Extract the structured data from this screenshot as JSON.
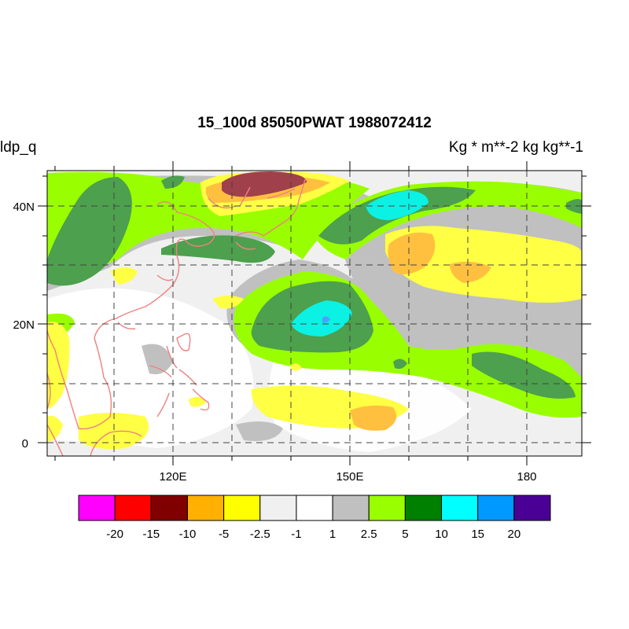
{
  "title": "15_100d 85050PWAT  1988072412",
  "left_string": "ldp_q",
  "right_string": "Kg  * m**-2 kg kg**-1",
  "map": {
    "lat_ticks": [
      "40N",
      "20N",
      "0"
    ],
    "lon_ticks": [
      "120E",
      "150E",
      "180"
    ],
    "coastline_color": "#f08080"
  },
  "colorbar": {
    "labels": [
      "-20",
      "-15",
      "-10",
      "-5",
      "-2.5",
      "-1",
      "1",
      "2.5",
      "5",
      "10",
      "15",
      "20"
    ],
    "colors": [
      "#ff00ff",
      "#ff0000",
      "#800000",
      "#ffb000",
      "#ffff00",
      "#f0f0f0",
      "#ffffff",
      "#c0c0c0",
      "#99ff00",
      "#008000",
      "#00ffff",
      "#0099ff",
      "#4b0095"
    ]
  }
}
